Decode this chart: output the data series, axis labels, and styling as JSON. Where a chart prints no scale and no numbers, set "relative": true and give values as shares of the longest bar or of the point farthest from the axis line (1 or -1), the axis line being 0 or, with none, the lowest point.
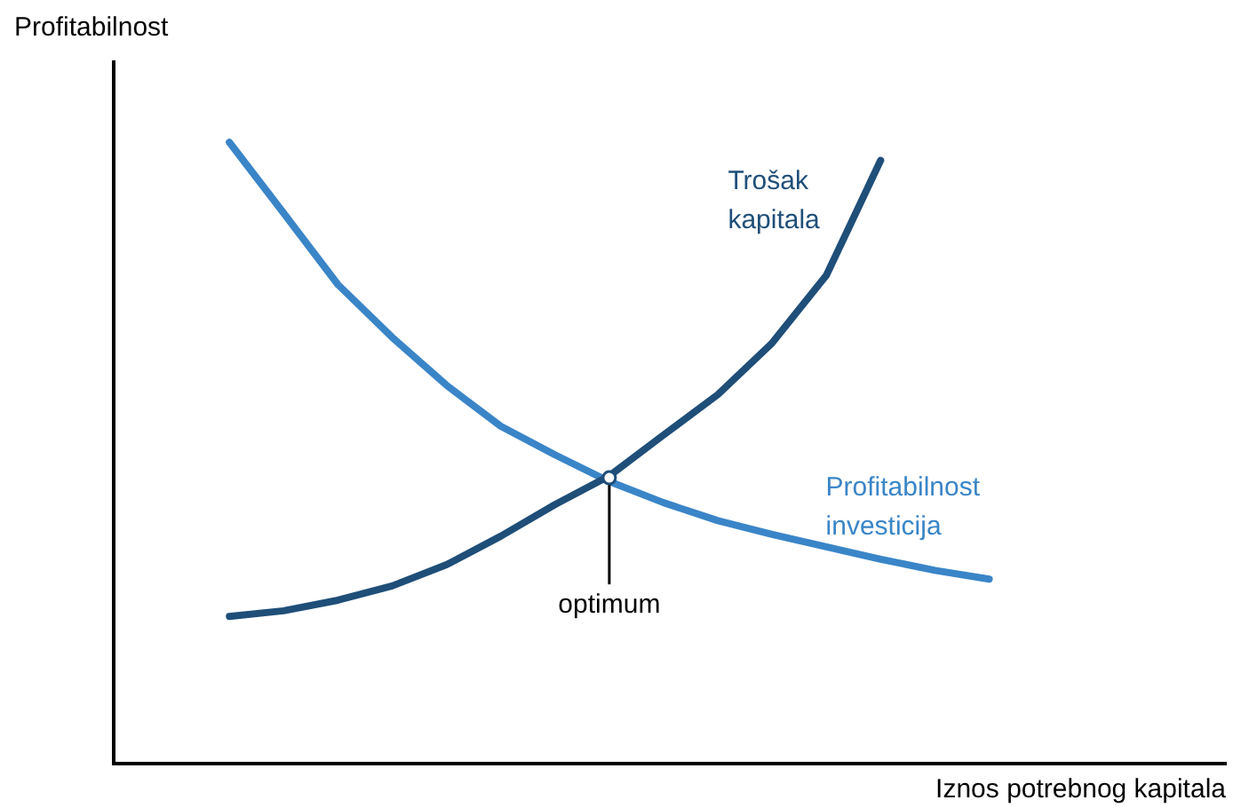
{
  "chart_data": {
    "type": "line",
    "relative": true,
    "xlabel": "Iznos potrebnog kapitala",
    "ylabel": "Profitabilnost",
    "grid": false,
    "legend": false,
    "marker": "none",
    "line_style": "solid",
    "categories": [
      null,
      null,
      null,
      null,
      null,
      null,
      null,
      null,
      null,
      null,
      null,
      null,
      null,
      null,
      null
    ],
    "series": [
      {
        "name": "Trošak kapitala",
        "color": "#1f4e79",
        "values": [
          0.237,
          0.246,
          0.263,
          0.286,
          0.32,
          0.366,
          0.417,
          0.463,
          0.529,
          0.594,
          0.677,
          0.786,
          0.971,
          null,
          null
        ]
      },
      {
        "name": "Profitabilnost investicija",
        "color": "#3a85c8",
        "values": [
          1.0,
          0.886,
          0.771,
          0.686,
          0.609,
          0.543,
          0.497,
          0.454,
          0.42,
          0.391,
          0.369,
          0.349,
          0.329,
          0.311,
          0.297
        ]
      }
    ],
    "annotations": [
      {
        "text": "optimum",
        "y": 0.46
      }
    ]
  }
}
